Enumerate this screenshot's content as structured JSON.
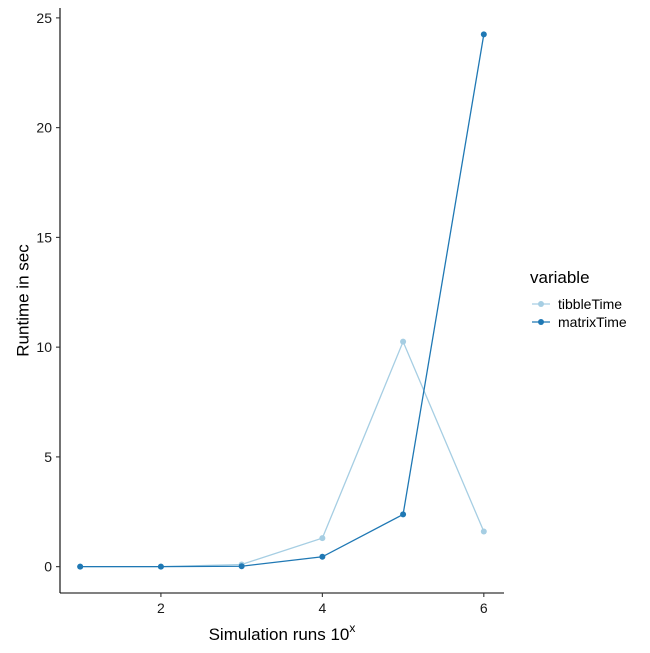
{
  "chart_data": {
    "type": "line",
    "x": [
      1,
      2,
      3,
      4,
      5,
      6
    ],
    "series": [
      {
        "name": "tibbleTime",
        "color": "#a6cee3",
        "values": [
          0.0,
          0.0,
          0.1,
          1.3,
          10.25,
          1.6
        ]
      },
      {
        "name": "matrixTime",
        "color": "#1f78b4",
        "values": [
          0.0,
          0.0,
          0.02,
          0.45,
          2.38,
          24.25
        ]
      }
    ],
    "xlabel": "Simulation runs 10",
    "xlabel_superscript": "x",
    "ylabel": "Runtime in sec",
    "xticks": [
      "2",
      "4",
      "6"
    ],
    "yticks": [
      "0",
      "5",
      "10",
      "15",
      "20",
      "25"
    ],
    "xlim": [
      0.75,
      6.25
    ],
    "ylim": [
      -1.2,
      25.45
    ],
    "legend_title": "variable",
    "legend_position": "right",
    "grid": false
  }
}
